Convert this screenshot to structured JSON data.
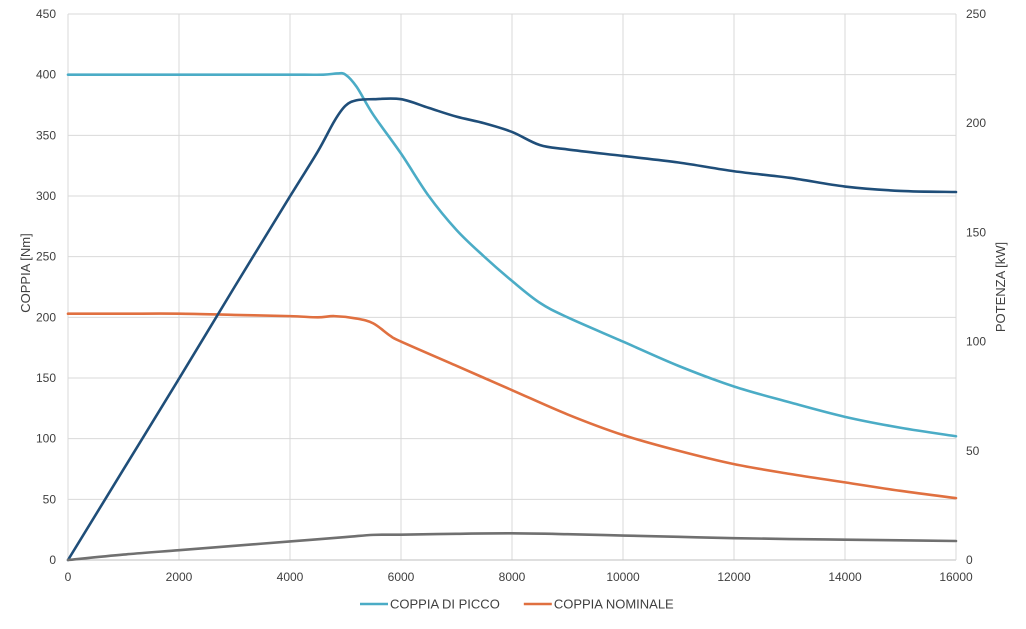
{
  "chart_data": {
    "type": "line",
    "title": "",
    "xlabel": "",
    "ylabel": "COPPIA [Nm]",
    "y2label": "POTENZA [kW]",
    "xlim": [
      0,
      16000
    ],
    "ylim": [
      0,
      450
    ],
    "y2lim": [
      0,
      250
    ],
    "x_ticks": [
      0,
      2000,
      4000,
      6000,
      8000,
      10000,
      12000,
      14000,
      16000
    ],
    "y_ticks": [
      0,
      50,
      100,
      150,
      200,
      250,
      300,
      350,
      400,
      450
    ],
    "y2_ticks": [
      0,
      50,
      100,
      150,
      200,
      250
    ],
    "grid": true,
    "legend_position": "bottom",
    "series": [
      {
        "name": "COPPIA DI PICCO",
        "axis": "left",
        "color": "#4BACC6",
        "in_legend": true,
        "x": [
          0,
          1000,
          2000,
          3000,
          4000,
          4600,
          4850,
          5000,
          5200,
          5500,
          6000,
          6500,
          7000,
          7500,
          8000,
          8500,
          9000,
          10000,
          11000,
          12000,
          13000,
          14000,
          15000,
          16000
        ],
        "y": [
          400,
          400,
          400,
          400,
          400,
          400,
          401,
          400,
          390,
          367,
          335,
          300,
          272,
          250,
          230,
          212,
          200,
          180,
          160,
          143,
          130,
          118,
          109,
          102
        ]
      },
      {
        "name": "COPPIA NOMINALE",
        "axis": "left",
        "color": "#E07040",
        "in_legend": true,
        "x": [
          0,
          1000,
          2000,
          3000,
          4000,
          4500,
          4800,
          5200,
          5500,
          5800,
          6000,
          7000,
          8000,
          9000,
          10000,
          11000,
          12000,
          13000,
          14000,
          15000,
          16000
        ],
        "y": [
          203,
          203,
          203,
          202,
          201,
          200,
          201,
          199,
          195,
          185,
          180,
          160,
          140,
          120,
          103,
          90,
          79,
          71,
          64,
          57,
          51
        ]
      },
      {
        "name": "",
        "axis": "right",
        "color": "#1F4E79",
        "in_legend": false,
        "x": [
          0,
          1000,
          2000,
          3000,
          4000,
          4500,
          4800,
          5000,
          5200,
          5500,
          6000,
          6500,
          7000,
          7500,
          8000,
          8500,
          9000,
          10000,
          11000,
          12000,
          13000,
          14000,
          15000,
          16000
        ],
        "y": [
          0,
          41.5,
          83,
          125,
          166.5,
          187,
          201,
          208,
          210.5,
          211,
          211,
          207,
          203,
          200,
          196,
          190,
          188,
          185,
          182,
          178,
          175,
          171,
          169,
          168.5
        ]
      },
      {
        "name": "",
        "axis": "right",
        "color": "#707070",
        "in_legend": false,
        "x": [
          0,
          1000,
          2000,
          3000,
          4000,
          5000,
          5500,
          6000,
          7000,
          8000,
          9000,
          10000,
          11000,
          12000,
          13000,
          14000,
          15000,
          16000
        ],
        "y": [
          0,
          2.5,
          4.5,
          6.5,
          8.5,
          10.5,
          11.5,
          11.6,
          12,
          12.2,
          11.8,
          11.2,
          10.6,
          10,
          9.6,
          9.3,
          9,
          8.7
        ]
      }
    ]
  }
}
